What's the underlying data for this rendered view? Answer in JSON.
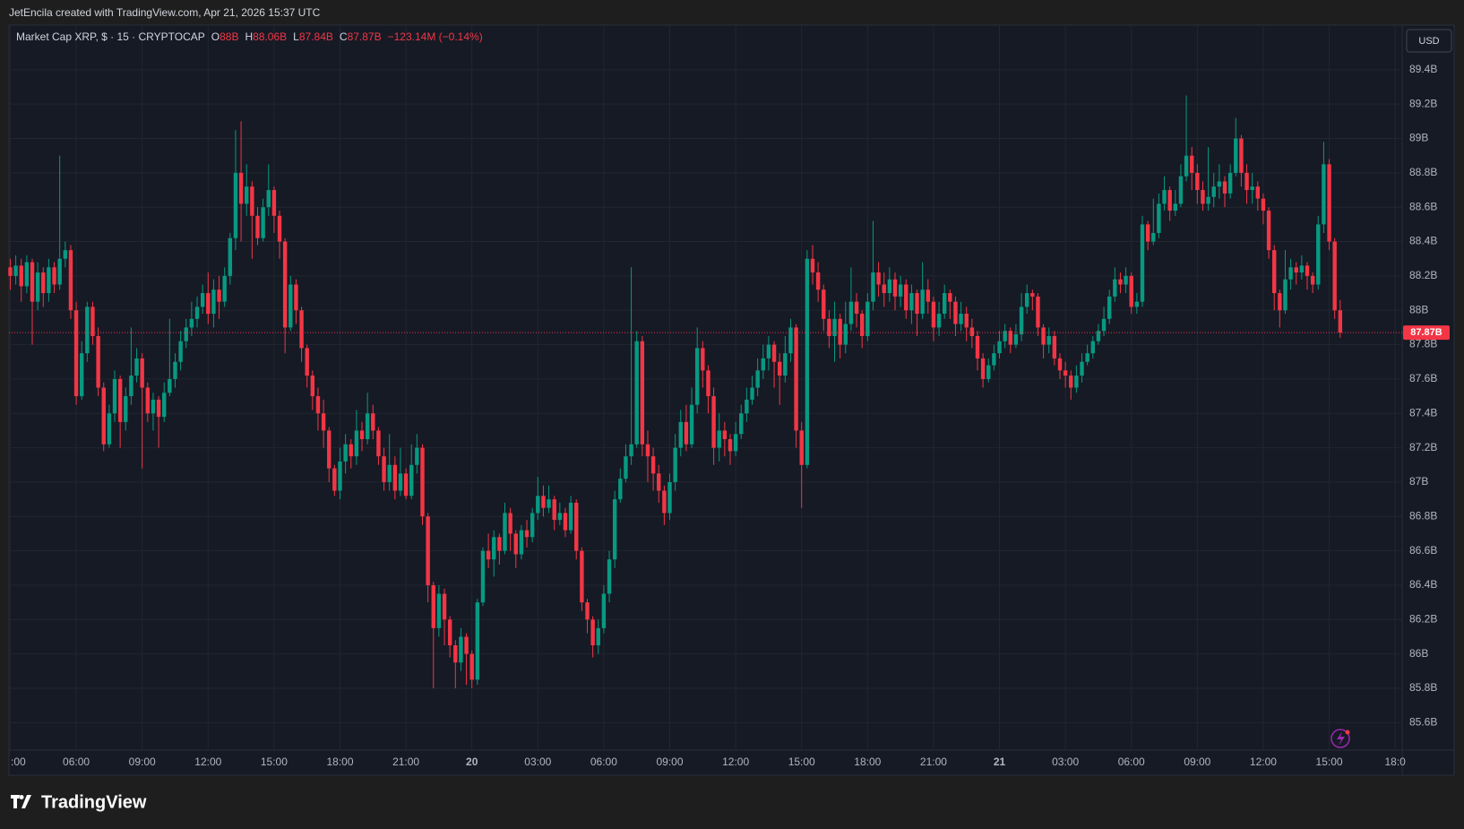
{
  "page": {
    "caption": "JetEncila created with TradingView.com, Apr 21, 2026 15:37 UTC",
    "currency": "USD",
    "logo": "TradingView"
  },
  "chart_data": {
    "type": "candlestick",
    "title": "Market Cap XRP, $ · 15 · CRYPTOCAP",
    "ohlc_labels": [
      {
        "name": "O",
        "label": "88B"
      },
      {
        "name": "H",
        "label": "88.06B"
      },
      {
        "name": "L",
        "label": "87.84B"
      },
      {
        "name": "C",
        "label": "87.87B"
      }
    ],
    "change_label": "−123.14M (−0.14%)",
    "last_price": {
      "value": 87.87,
      "label": "87.87B"
    },
    "up_color": "#089981",
    "down_color": "#f23645",
    "grid": true,
    "xlim": [
      2.94,
      66.32
    ],
    "ylim": [
      85.44,
      89.66
    ],
    "xticks": [
      {
        "value": 3,
        "label": ":00"
      },
      {
        "value": 6,
        "label": "06:00"
      },
      {
        "value": 9,
        "label": "09:00"
      },
      {
        "value": 12,
        "label": "12:00"
      },
      {
        "value": 15,
        "label": "15:00"
      },
      {
        "value": 18,
        "label": "18:00"
      },
      {
        "value": 21,
        "label": "21:00"
      },
      {
        "value": 24,
        "label": "20"
      },
      {
        "value": 27,
        "label": "03:00"
      },
      {
        "value": 30,
        "label": "06:00"
      },
      {
        "value": 33,
        "label": "09:00"
      },
      {
        "value": 36,
        "label": "12:00"
      },
      {
        "value": 39,
        "label": "15:00"
      },
      {
        "value": 42,
        "label": "18:00"
      },
      {
        "value": 45,
        "label": "21:00"
      },
      {
        "value": 48,
        "label": "21"
      },
      {
        "value": 51,
        "label": "03:00"
      },
      {
        "value": 54,
        "label": "06:00"
      },
      {
        "value": 57,
        "label": "09:00"
      },
      {
        "value": 60,
        "label": "12:00"
      },
      {
        "value": 63,
        "label": "15:00"
      },
      {
        "value": 66,
        "label": "18:0"
      }
    ],
    "yticks": [
      {
        "value": 85.6,
        "label": "85.6B"
      },
      {
        "value": 85.8,
        "label": "85.8B"
      },
      {
        "value": 86,
        "label": "86B"
      },
      {
        "value": 86.2,
        "label": "86.2B"
      },
      {
        "value": 86.4,
        "label": "86.4B"
      },
      {
        "value": 86.6,
        "label": "86.6B"
      },
      {
        "value": 86.8,
        "label": "86.8B"
      },
      {
        "value": 87,
        "label": "87B"
      },
      {
        "value": 87.2,
        "label": "87.2B"
      },
      {
        "value": 87.4,
        "label": "87.4B"
      },
      {
        "value": 87.6,
        "label": "87.6B"
      },
      {
        "value": 87.8,
        "label": "87.8B"
      },
      {
        "value": 88,
        "label": "88B"
      },
      {
        "value": 88.2,
        "label": "88.2B"
      },
      {
        "value": 88.4,
        "label": "88.4B"
      },
      {
        "value": 88.6,
        "label": "88.6B"
      },
      {
        "value": 88.8,
        "label": "88.8B"
      },
      {
        "value": 89,
        "label": "89B"
      },
      {
        "value": 89.2,
        "label": "89.2B"
      },
      {
        "value": 89.4,
        "label": "89.4B"
      }
    ],
    "x": [
      3,
      3.25,
      3.5,
      3.75,
      4,
      4.25,
      4.5,
      4.75,
      5,
      5.25,
      5.5,
      5.75,
      6,
      6.25,
      6.5,
      6.75,
      7,
      7.25,
      7.5,
      7.75,
      8,
      8.25,
      8.5,
      8.75,
      9,
      9.25,
      9.5,
      9.75,
      10,
      10.25,
      10.5,
      10.75,
      11,
      11.25,
      11.5,
      11.75,
      12,
      12.25,
      12.5,
      12.75,
      13,
      13.25,
      13.5,
      13.75,
      14,
      14.25,
      14.5,
      14.75,
      15,
      15.25,
      15.5,
      15.75,
      16,
      16.25,
      16.5,
      16.75,
      17,
      17.25,
      17.5,
      17.75,
      18,
      18.25,
      18.5,
      18.75,
      19,
      19.25,
      19.5,
      19.75,
      20,
      20.25,
      20.5,
      20.75,
      21,
      21.25,
      21.5,
      21.75,
      22,
      22.25,
      22.5,
      22.75,
      23,
      23.25,
      23.5,
      23.75,
      24,
      24.25,
      24.5,
      24.75,
      25,
      25.25,
      25.5,
      25.75,
      26,
      26.25,
      26.5,
      26.75,
      27,
      27.25,
      27.5,
      27.75,
      28,
      28.25,
      28.5,
      28.75,
      29,
      29.25,
      29.5,
      29.75,
      30,
      30.25,
      30.5,
      30.75,
      31,
      31.25,
      31.5,
      31.75,
      32,
      32.25,
      32.5,
      32.75,
      33,
      33.25,
      33.5,
      33.75,
      34,
      34.25,
      34.5,
      34.75,
      35,
      35.25,
      35.5,
      35.75,
      36,
      36.25,
      36.5,
      36.75,
      37,
      37.25,
      37.5,
      37.75,
      38,
      38.25,
      38.5,
      38.75,
      39,
      39.25,
      39.5,
      39.75,
      40,
      40.25,
      40.5,
      40.75,
      41,
      41.25,
      41.5,
      41.75,
      42,
      42.25,
      42.5,
      42.75,
      43,
      43.25,
      43.5,
      43.75,
      44,
      44.25,
      44.5,
      44.75,
      45,
      45.25,
      45.5,
      45.75,
      46,
      46.25,
      46.5,
      46.75,
      47,
      47.25,
      47.5,
      47.75,
      48,
      48.25,
      48.5,
      48.75,
      49,
      49.25,
      49.5,
      49.75,
      50,
      50.25,
      50.5,
      50.75,
      51,
      51.25,
      51.5,
      51.75,
      52,
      52.25,
      52.5,
      52.75,
      53,
      53.25,
      53.5,
      53.75,
      54,
      54.25,
      54.5,
      54.75,
      55,
      55.25,
      55.5,
      55.75,
      56,
      56.25,
      56.5,
      56.75,
      57,
      57.25,
      57.5,
      57.75,
      58,
      58.25,
      58.5,
      58.75,
      59,
      59.25,
      59.5,
      59.75,
      60,
      60.25,
      60.5,
      60.75,
      61,
      61.25,
      61.5,
      61.75,
      62,
      62.25,
      62.5,
      62.75,
      63,
      63.25,
      63.5
    ],
    "open": [
      88.25,
      88.2,
      88.26,
      88.14,
      88.28,
      88.05,
      88.22,
      88.1,
      88.25,
      88.15,
      88.3,
      88.35,
      88.0,
      87.5,
      87.75,
      88.02,
      87.85,
      87.55,
      87.22,
      87.4,
      87.6,
      87.35,
      87.5,
      87.62,
      87.72,
      87.55,
      87.4,
      87.48,
      87.38,
      87.52,
      87.6,
      87.7,
      87.82,
      87.9,
      87.95,
      88.02,
      88.1,
      87.98,
      88.12,
      88.05,
      88.2,
      88.42,
      88.8,
      88.62,
      88.72,
      88.55,
      88.42,
      88.6,
      88.7,
      88.55,
      88.4,
      87.9,
      88.15,
      88.0,
      87.78,
      87.62,
      87.5,
      87.4,
      87.3,
      87.08,
      86.95,
      87.12,
      87.22,
      87.15,
      87.3,
      87.25,
      87.4,
      87.3,
      87.15,
      87.0,
      87.1,
      86.95,
      87.05,
      86.92,
      87.1,
      87.2,
      86.8,
      86.4,
      86.15,
      86.35,
      86.2,
      86.05,
      85.95,
      86.1,
      86.0,
      85.85,
      86.3,
      86.6,
      86.55,
      86.68,
      86.6,
      86.82,
      86.7,
      86.58,
      86.72,
      86.68,
      86.82,
      86.92,
      86.85,
      86.9,
      86.78,
      86.82,
      86.72,
      86.88,
      86.6,
      86.3,
      86.2,
      86.05,
      86.15,
      86.35,
      86.55,
      86.9,
      87.02,
      87.15,
      87.22,
      87.82,
      87.22,
      87.15,
      87.05,
      86.95,
      86.82,
      87.0,
      87.2,
      87.35,
      87.22,
      87.45,
      87.78,
      87.65,
      87.5,
      87.2,
      87.3,
      87.25,
      87.18,
      87.28,
      87.4,
      87.48,
      87.55,
      87.65,
      87.72,
      87.8,
      87.7,
      87.62,
      87.75,
      87.9,
      87.3,
      87.1,
      88.3,
      88.22,
      88.12,
      87.95,
      87.85,
      87.95,
      87.8,
      87.92,
      88.05,
      87.98,
      87.85,
      88.05,
      88.22,
      88.15,
      88.1,
      88.18,
      88.08,
      88.15,
      88.0,
      88.1,
      87.98,
      88.12,
      88.05,
      87.9,
      87.98,
      88.1,
      88.05,
      87.92,
      87.98,
      87.9,
      87.85,
      87.72,
      87.6,
      87.68,
      87.75,
      87.82,
      87.88,
      87.8,
      87.86,
      88.02,
      88.1,
      88.08,
      87.9,
      87.8,
      87.85,
      87.72,
      87.65,
      87.62,
      87.55,
      87.62,
      87.7,
      87.75,
      87.82,
      87.88,
      87.95,
      88.08,
      88.18,
      88.15,
      88.2,
      88.02,
      88.05,
      88.5,
      88.4,
      88.45,
      88.62,
      88.7,
      88.58,
      88.62,
      88.78,
      88.9,
      88.8,
      88.7,
      88.62,
      88.66,
      88.72,
      88.75,
      88.68,
      88.8,
      89.0,
      88.8,
      88.7,
      88.72,
      88.65,
      88.58,
      88.35,
      88.1,
      88.0,
      88.18,
      88.25,
      88.22,
      88.26,
      88.2,
      88.15,
      88.5,
      88.85,
      88.4,
      88.0
    ],
    "high": [
      88.3,
      88.32,
      88.3,
      88.32,
      88.3,
      88.28,
      88.25,
      88.3,
      88.28,
      88.9,
      88.4,
      88.38,
      88.05,
      87.82,
      88.05,
      88.05,
      87.9,
      87.58,
      87.45,
      87.65,
      87.62,
      87.55,
      87.9,
      87.78,
      87.75,
      87.58,
      87.52,
      87.5,
      87.58,
      87.95,
      87.75,
      87.88,
      87.95,
      88.05,
      88.08,
      88.15,
      88.22,
      88.18,
      88.2,
      88.25,
      88.45,
      89.05,
      89.1,
      88.85,
      88.75,
      88.6,
      88.65,
      88.85,
      88.72,
      88.58,
      88.42,
      88.2,
      88.18,
      88.02,
      87.8,
      87.65,
      87.55,
      87.48,
      87.32,
      87.1,
      87.2,
      87.28,
      87.25,
      87.42,
      87.35,
      87.52,
      87.45,
      87.32,
      87.2,
      87.28,
      87.15,
      87.2,
      87.08,
      87.22,
      87.28,
      87.22,
      86.82,
      86.42,
      86.4,
      86.38,
      86.22,
      86.08,
      86.15,
      86.12,
      86.02,
      86.32,
      86.62,
      86.7,
      86.72,
      86.7,
      86.88,
      86.85,
      86.72,
      86.75,
      86.78,
      86.85,
      87.03,
      86.98,
      86.98,
      86.92,
      86.88,
      86.85,
      86.92,
      86.9,
      86.62,
      86.32,
      86.22,
      86.2,
      86.4,
      86.6,
      86.95,
      87.08,
      87.22,
      88.25,
      87.88,
      87.85,
      87.3,
      87.2,
      87.1,
      86.98,
      87.05,
      87.28,
      87.42,
      87.45,
      87.55,
      87.9,
      87.82,
      87.68,
      87.55,
      87.4,
      87.35,
      87.28,
      87.35,
      87.45,
      87.55,
      87.62,
      87.72,
      87.8,
      87.85,
      87.82,
      87.75,
      87.85,
      87.95,
      87.92,
      87.35,
      88.35,
      88.38,
      88.28,
      88.15,
      88.0,
      88.05,
      87.98,
      88.05,
      88.25,
      88.1,
      88.0,
      88.1,
      88.52,
      88.28,
      88.22,
      88.25,
      88.22,
      88.2,
      88.18,
      88.15,
      88.12,
      88.28,
      88.18,
      88.08,
      88.05,
      88.15,
      88.12,
      88.08,
      88.05,
      88.02,
      87.95,
      87.88,
      87.75,
      87.72,
      87.8,
      87.88,
      87.92,
      87.9,
      87.92,
      88.1,
      88.15,
      88.12,
      88.1,
      87.92,
      87.9,
      87.88,
      87.75,
      87.7,
      87.65,
      87.68,
      87.75,
      87.8,
      87.85,
      87.92,
      88.02,
      88.12,
      88.25,
      88.22,
      88.25,
      88.22,
      88.1,
      88.55,
      88.52,
      88.65,
      88.68,
      88.78,
      88.72,
      88.7,
      88.85,
      89.25,
      88.95,
      88.85,
      88.75,
      88.95,
      88.8,
      88.85,
      88.78,
      88.85,
      89.12,
      89.02,
      88.85,
      88.8,
      88.75,
      88.68,
      88.6,
      88.38,
      88.12,
      88.35,
      88.3,
      88.28,
      88.32,
      88.28,
      88.22,
      88.55,
      88.98,
      88.88,
      88.42,
      88.06
    ],
    "low": [
      88.12,
      88.15,
      88.05,
      88.1,
      87.8,
      88.0,
      88.02,
      88.05,
      88.1,
      88.12,
      88.25,
      87.95,
      87.45,
      87.48,
      87.7,
      87.8,
      87.5,
      87.18,
      87.2,
      87.35,
      87.2,
      87.3,
      87.45,
      87.58,
      87.08,
      87.35,
      87.3,
      87.2,
      87.35,
      87.5,
      87.55,
      87.65,
      87.78,
      87.85,
      87.9,
      87.98,
      87.92,
      87.9,
      87.95,
      88.02,
      88.15,
      88.35,
      88.4,
      88.55,
      88.3,
      88.38,
      88.4,
      88.55,
      88.45,
      88.3,
      87.75,
      87.88,
      87.92,
      87.7,
      87.55,
      87.42,
      87.3,
      87.2,
      87.0,
      86.92,
      86.9,
      87.05,
      87.08,
      87.1,
      87.18,
      87.22,
      87.25,
      87.1,
      86.95,
      86.95,
      86.9,
      86.92,
      86.9,
      86.9,
      87.05,
      86.75,
      86.3,
      85.8,
      86.1,
      86.05,
      85.98,
      85.8,
      85.9,
      85.82,
      85.8,
      85.82,
      86.28,
      86.5,
      86.45,
      86.52,
      86.58,
      86.6,
      86.5,
      86.55,
      86.62,
      86.65,
      86.78,
      86.8,
      86.82,
      86.72,
      86.75,
      86.68,
      86.7,
      86.55,
      86.25,
      86.12,
      85.98,
      86.0,
      86.12,
      86.3,
      86.5,
      86.88,
      87.0,
      87.1,
      87.2,
      87.15,
      87.0,
      86.95,
      86.88,
      86.75,
      86.78,
      86.95,
      87.15,
      87.18,
      87.2,
      87.4,
      87.55,
      87.4,
      87.1,
      87.12,
      87.15,
      87.1,
      87.15,
      87.25,
      87.35,
      87.45,
      87.5,
      87.6,
      87.65,
      87.55,
      87.45,
      87.58,
      87.7,
      87.2,
      86.85,
      87.08,
      88.15,
      88.05,
      87.88,
      87.78,
      87.7,
      87.72,
      87.75,
      87.88,
      87.9,
      87.78,
      87.82,
      88.0,
      88.08,
      88.02,
      88.05,
      88.0,
      88.02,
      87.95,
      87.92,
      87.85,
      87.95,
      87.98,
      87.82,
      87.85,
      87.95,
      87.95,
      87.85,
      87.88,
      87.82,
      87.78,
      87.65,
      87.55,
      87.58,
      87.65,
      87.72,
      87.78,
      87.75,
      87.78,
      87.82,
      87.98,
      88.0,
      87.85,
      87.72,
      87.75,
      87.68,
      87.6,
      87.55,
      87.48,
      87.52,
      87.58,
      87.68,
      87.72,
      87.8,
      87.85,
      87.92,
      88.05,
      88.1,
      88.1,
      87.98,
      87.98,
      88.02,
      88.35,
      88.38,
      88.42,
      88.58,
      88.52,
      88.55,
      88.6,
      88.75,
      88.7,
      88.62,
      88.58,
      88.58,
      88.6,
      88.65,
      88.6,
      88.65,
      88.78,
      88.72,
      88.62,
      88.62,
      88.58,
      88.5,
      88.3,
      88.0,
      87.9,
      87.98,
      88.12,
      88.15,
      88.18,
      88.12,
      88.1,
      88.12,
      88.45,
      88.35,
      87.95,
      87.84
    ],
    "close": [
      88.2,
      88.26,
      88.14,
      88.28,
      88.05,
      88.22,
      88.1,
      88.25,
      88.15,
      88.3,
      88.35,
      88.0,
      87.5,
      87.75,
      88.02,
      87.85,
      87.55,
      87.22,
      87.4,
      87.6,
      87.35,
      87.5,
      87.62,
      87.72,
      87.55,
      87.4,
      87.48,
      87.38,
      87.52,
      87.6,
      87.7,
      87.82,
      87.9,
      87.95,
      88.02,
      88.1,
      87.98,
      88.12,
      88.05,
      88.2,
      88.42,
      88.8,
      88.62,
      88.72,
      88.55,
      88.42,
      88.6,
      88.7,
      88.55,
      88.4,
      87.9,
      88.15,
      88.0,
      87.78,
      87.62,
      87.5,
      87.4,
      87.3,
      87.08,
      86.95,
      87.12,
      87.22,
      87.15,
      87.3,
      87.25,
      87.4,
      87.3,
      87.15,
      87.0,
      87.1,
      86.95,
      87.05,
      86.92,
      87.1,
      87.2,
      86.8,
      86.4,
      86.15,
      86.35,
      86.2,
      86.05,
      85.95,
      86.1,
      86.0,
      85.85,
      86.3,
      86.6,
      86.55,
      86.68,
      86.6,
      86.82,
      86.7,
      86.58,
      86.72,
      86.68,
      86.82,
      86.92,
      86.85,
      86.9,
      86.78,
      86.82,
      86.72,
      86.88,
      86.6,
      86.3,
      86.2,
      86.05,
      86.15,
      86.35,
      86.55,
      86.9,
      87.02,
      87.15,
      87.22,
      87.82,
      87.22,
      87.15,
      87.05,
      86.95,
      86.82,
      87.0,
      87.2,
      87.35,
      87.22,
      87.45,
      87.78,
      87.65,
      87.5,
      87.2,
      87.3,
      87.25,
      87.18,
      87.28,
      87.4,
      87.48,
      87.55,
      87.65,
      87.72,
      87.8,
      87.7,
      87.62,
      87.75,
      87.9,
      87.3,
      87.1,
      88.3,
      88.22,
      88.12,
      87.95,
      87.85,
      87.95,
      87.8,
      87.92,
      88.05,
      87.98,
      87.85,
      88.05,
      88.22,
      88.15,
      88.1,
      88.18,
      88.08,
      88.15,
      88.0,
      88.1,
      87.98,
      88.12,
      88.05,
      87.9,
      87.98,
      88.1,
      88.05,
      87.92,
      87.98,
      87.9,
      87.85,
      87.72,
      87.6,
      87.68,
      87.75,
      87.82,
      87.88,
      87.8,
      87.86,
      88.02,
      88.1,
      88.08,
      87.9,
      87.8,
      87.85,
      87.72,
      87.65,
      87.62,
      87.55,
      87.62,
      87.7,
      87.75,
      87.82,
      87.88,
      87.95,
      88.08,
      88.18,
      88.15,
      88.2,
      88.02,
      88.05,
      88.5,
      88.4,
      88.45,
      88.62,
      88.7,
      88.58,
      88.62,
      88.78,
      88.9,
      88.8,
      88.7,
      88.62,
      88.66,
      88.72,
      88.75,
      88.68,
      88.8,
      89.0,
      88.8,
      88.7,
      88.72,
      88.65,
      88.58,
      88.35,
      88.1,
      88.0,
      88.18,
      88.25,
      88.22,
      88.26,
      88.2,
      88.15,
      88.5,
      88.85,
      88.4,
      88.0,
      87.87
    ]
  }
}
